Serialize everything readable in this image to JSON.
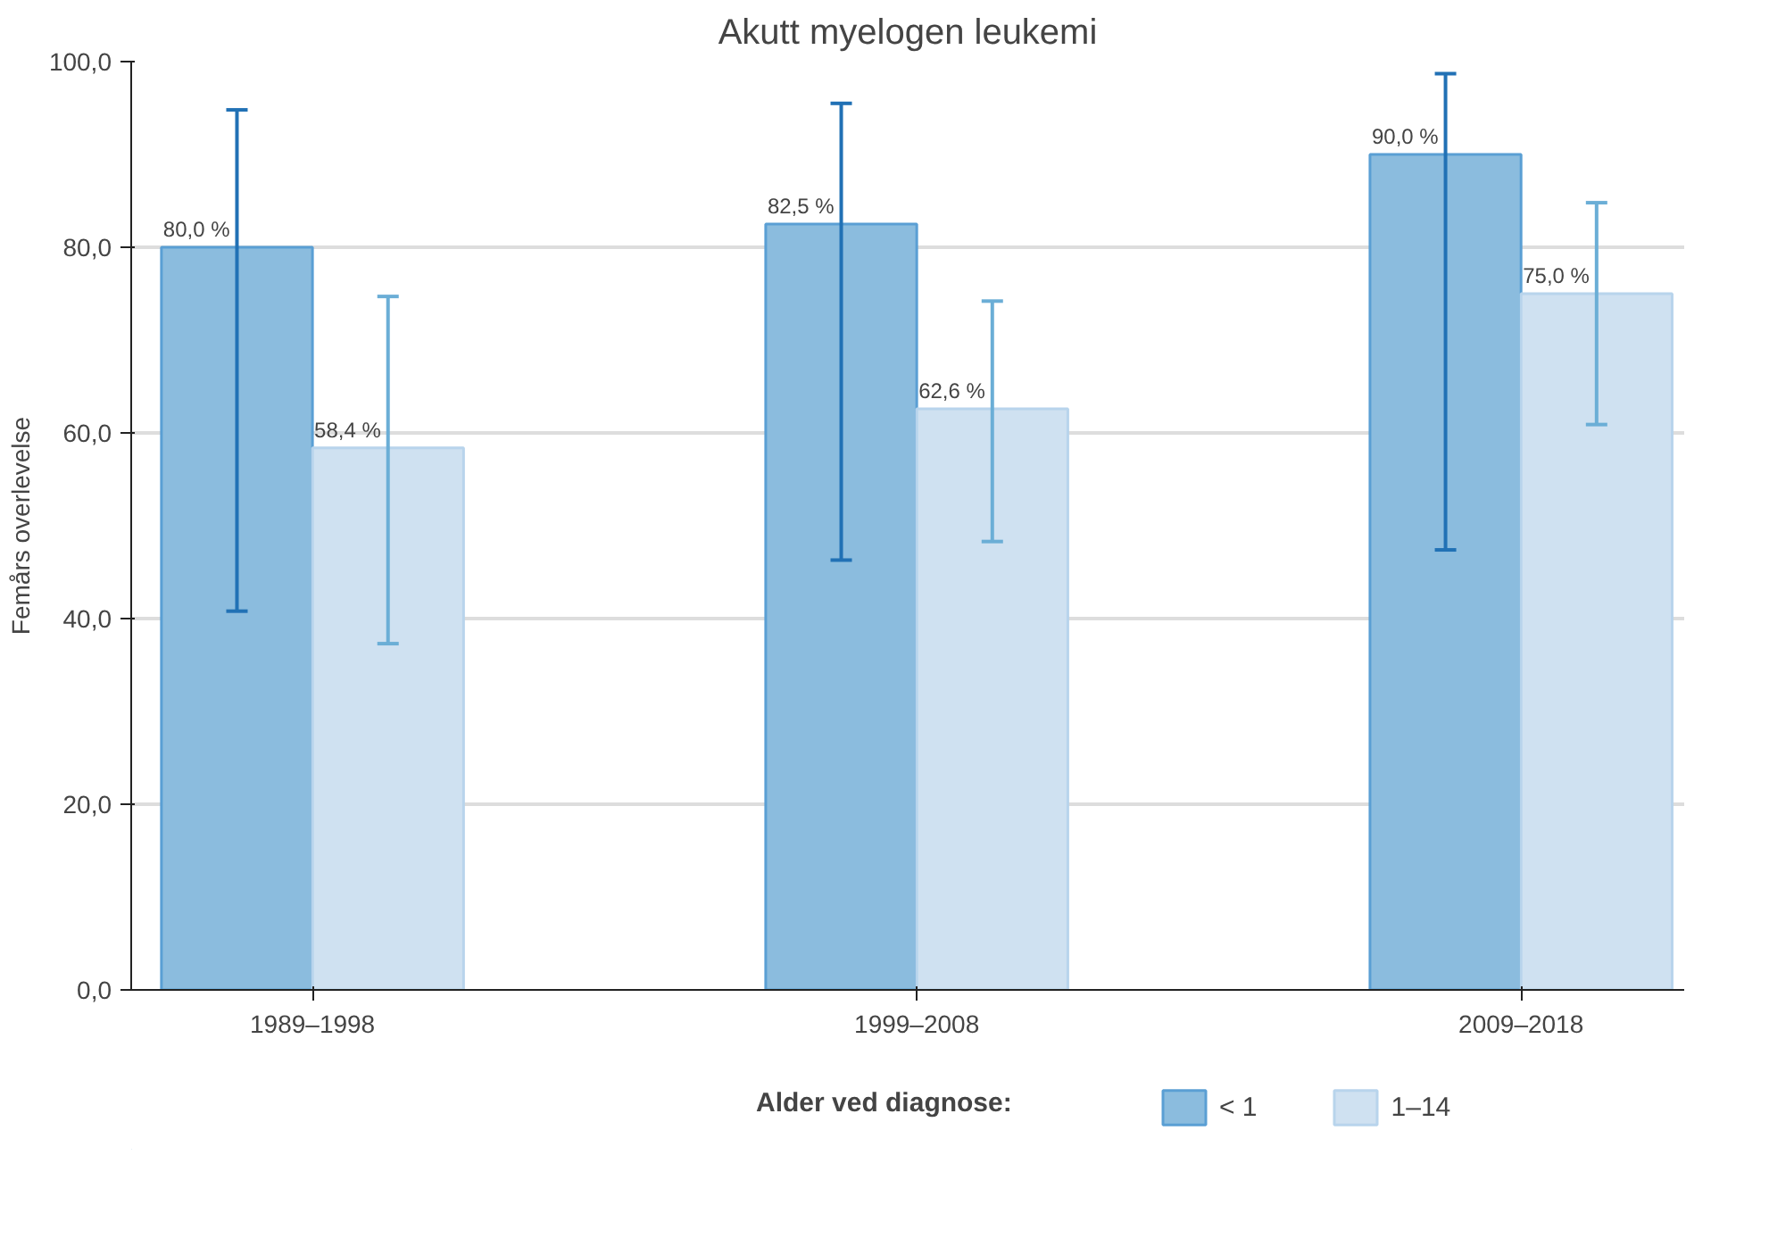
{
  "chart_data": {
    "type": "bar",
    "title": "Akutt myelogen leukemi",
    "ylabel": "Femårs overlevelse",
    "legend_title": "Alder ved diagnose:",
    "categories": [
      "1989–1998",
      "1999–2008",
      "2009–2018"
    ],
    "series": [
      {
        "name": "< 1",
        "color": "#8bbcde",
        "values": [
          80.0,
          82.5,
          90.0
        ],
        "errors": [
          [
            40.8,
            94.8
          ],
          [
            46.3,
            95.5
          ],
          [
            47.4,
            98.7
          ]
        ],
        "value_labels": [
          "80,0 %",
          "82,5 %",
          "90,0 %"
        ]
      },
      {
        "name": "1–14",
        "color": "#cfe1f1",
        "values": [
          58.4,
          62.6,
          75.0
        ],
        "errors": [
          [
            37.3,
            74.7
          ],
          [
            48.3,
            74.2
          ],
          [
            60.9,
            84.8
          ]
        ],
        "value_labels": [
          "58,4 %",
          "62,6 %",
          "75,0 %"
        ]
      }
    ],
    "ylim": [
      0,
      100
    ],
    "yticks": [
      {
        "value": 0,
        "label": "0,0"
      },
      {
        "value": 20,
        "label": "20,0"
      },
      {
        "value": 40,
        "label": "40,0"
      },
      {
        "value": 60,
        "label": "60,0"
      },
      {
        "value": 80,
        "label": "80,0"
      },
      {
        "value": 100,
        "label": "100,0"
      }
    ],
    "grid": "y",
    "legend": "bottom"
  }
}
